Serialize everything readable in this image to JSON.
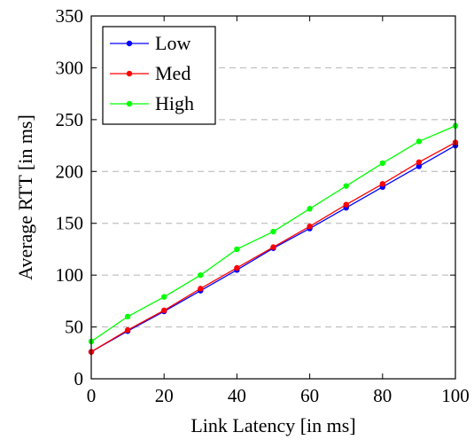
{
  "chart_data": {
    "type": "line",
    "xlabel": "Link Latency [in ms]",
    "ylabel": "Average RTT [in ms]",
    "xlim": [
      0,
      100
    ],
    "ylim": [
      0,
      350
    ],
    "xticks": [
      0,
      20,
      40,
      60,
      80,
      100
    ],
    "yticks": [
      0,
      50,
      100,
      150,
      200,
      250,
      300,
      350
    ],
    "grid": "horizontal dashed",
    "legend_position": "top-left",
    "x": [
      0,
      10,
      20,
      30,
      40,
      50,
      60,
      70,
      80,
      90,
      100
    ],
    "series": [
      {
        "name": "Low",
        "color": "#0000ff",
        "values": [
          26,
          46,
          65,
          85,
          105,
          126,
          145,
          165,
          185,
          205,
          225
        ]
      },
      {
        "name": "Med",
        "color": "#ff0000",
        "values": [
          26,
          47,
          66,
          87,
          107,
          127,
          147,
          168,
          188,
          209,
          228
        ]
      },
      {
        "name": "High",
        "color": "#00ff00",
        "values": [
          36,
          60,
          79,
          100,
          125,
          142,
          164,
          186,
          208,
          229,
          244
        ]
      }
    ]
  }
}
